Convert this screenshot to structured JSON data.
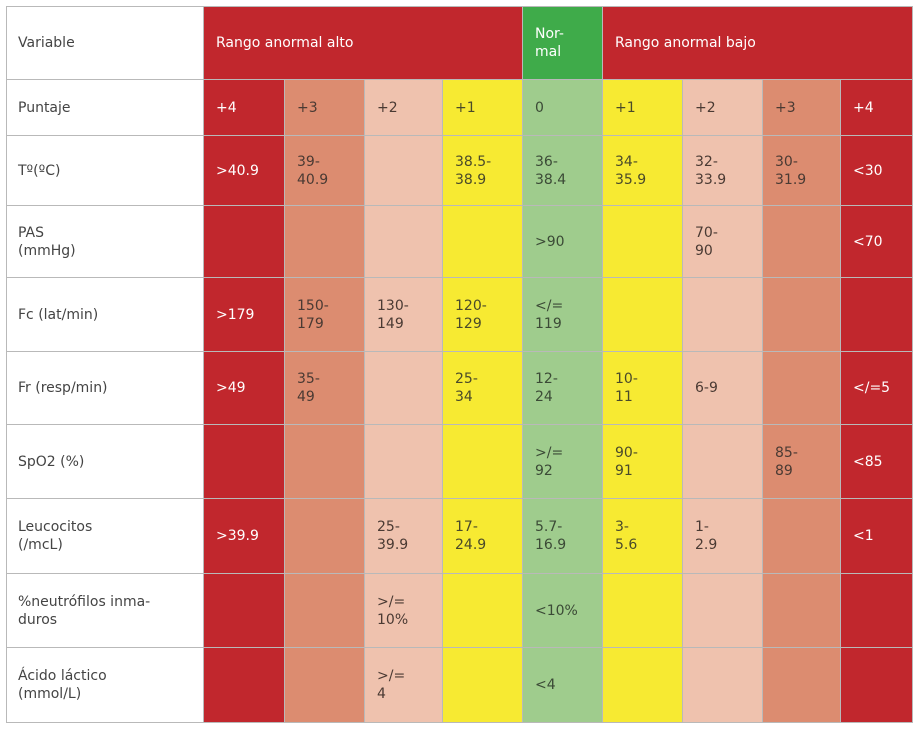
{
  "header": {
    "variable": "Variable",
    "high": "Rango anormal alto",
    "normal": "Nor-\nmal",
    "low": "Rango anormal bajo"
  },
  "score_row": {
    "label": "Puntaje",
    "scores": [
      "+4",
      "+3",
      "+2",
      "+1",
      "0",
      "+1",
      "+2",
      "+3",
      "+4"
    ]
  },
  "rows": [
    {
      "label": "Tº(ºC)",
      "cells": [
        ">40.9",
        "39-\n40.9",
        "",
        "38.5-\n38.9",
        "36-\n38.4",
        "34-\n35.9",
        "32-\n33.9",
        "30-\n31.9",
        "<30"
      ]
    },
    {
      "label": "PAS\n(mmHg)",
      "cells": [
        "",
        "",
        "",
        "",
        ">90",
        "",
        "70-\n90",
        "",
        "<70"
      ]
    },
    {
      "label": "Fc (lat/min)",
      "cells": [
        ">179",
        "150-\n179",
        "130-\n149",
        "120-\n129",
        "</=\n119",
        "",
        "",
        "",
        ""
      ]
    },
    {
      "label": "Fr (resp/min)",
      "cells": [
        ">49",
        "35-\n49",
        "",
        "25-\n34",
        "12-\n24",
        "10-\n11",
        "6-9",
        "",
        "</=5"
      ]
    },
    {
      "label": "SpO2 (%)",
      "cells": [
        "",
        "",
        "",
        "",
        ">/=\n92",
        "90-\n91",
        "",
        "85-\n89",
        "<85"
      ]
    },
    {
      "label": "Leucocitos\n(/mcL)",
      "cells": [
        ">39.9",
        "",
        "25-\n39.9",
        "17-\n24.9",
        "5.7-\n16.9",
        "3-\n5.6",
        "1-\n2.9",
        "",
        "<1"
      ]
    },
    {
      "label": "%neutrófilos inma-\nduros",
      "cells": [
        "",
        "",
        ">/=\n10%",
        "",
        "<10%",
        "",
        "",
        "",
        ""
      ]
    },
    {
      "label": "Ácido láctico\n(mmol/L)",
      "cells": [
        "",
        "",
        ">/=\n4",
        "",
        "<4",
        "",
        "",
        "",
        ""
      ]
    }
  ],
  "colors": {
    "red": "#c1272d",
    "dark_salmon": "#dc8c70",
    "light_salmon": "#efc2ae",
    "yellow": "#f7ea32",
    "light_green": "#9fcc8d",
    "green": "#3fab4a"
  }
}
